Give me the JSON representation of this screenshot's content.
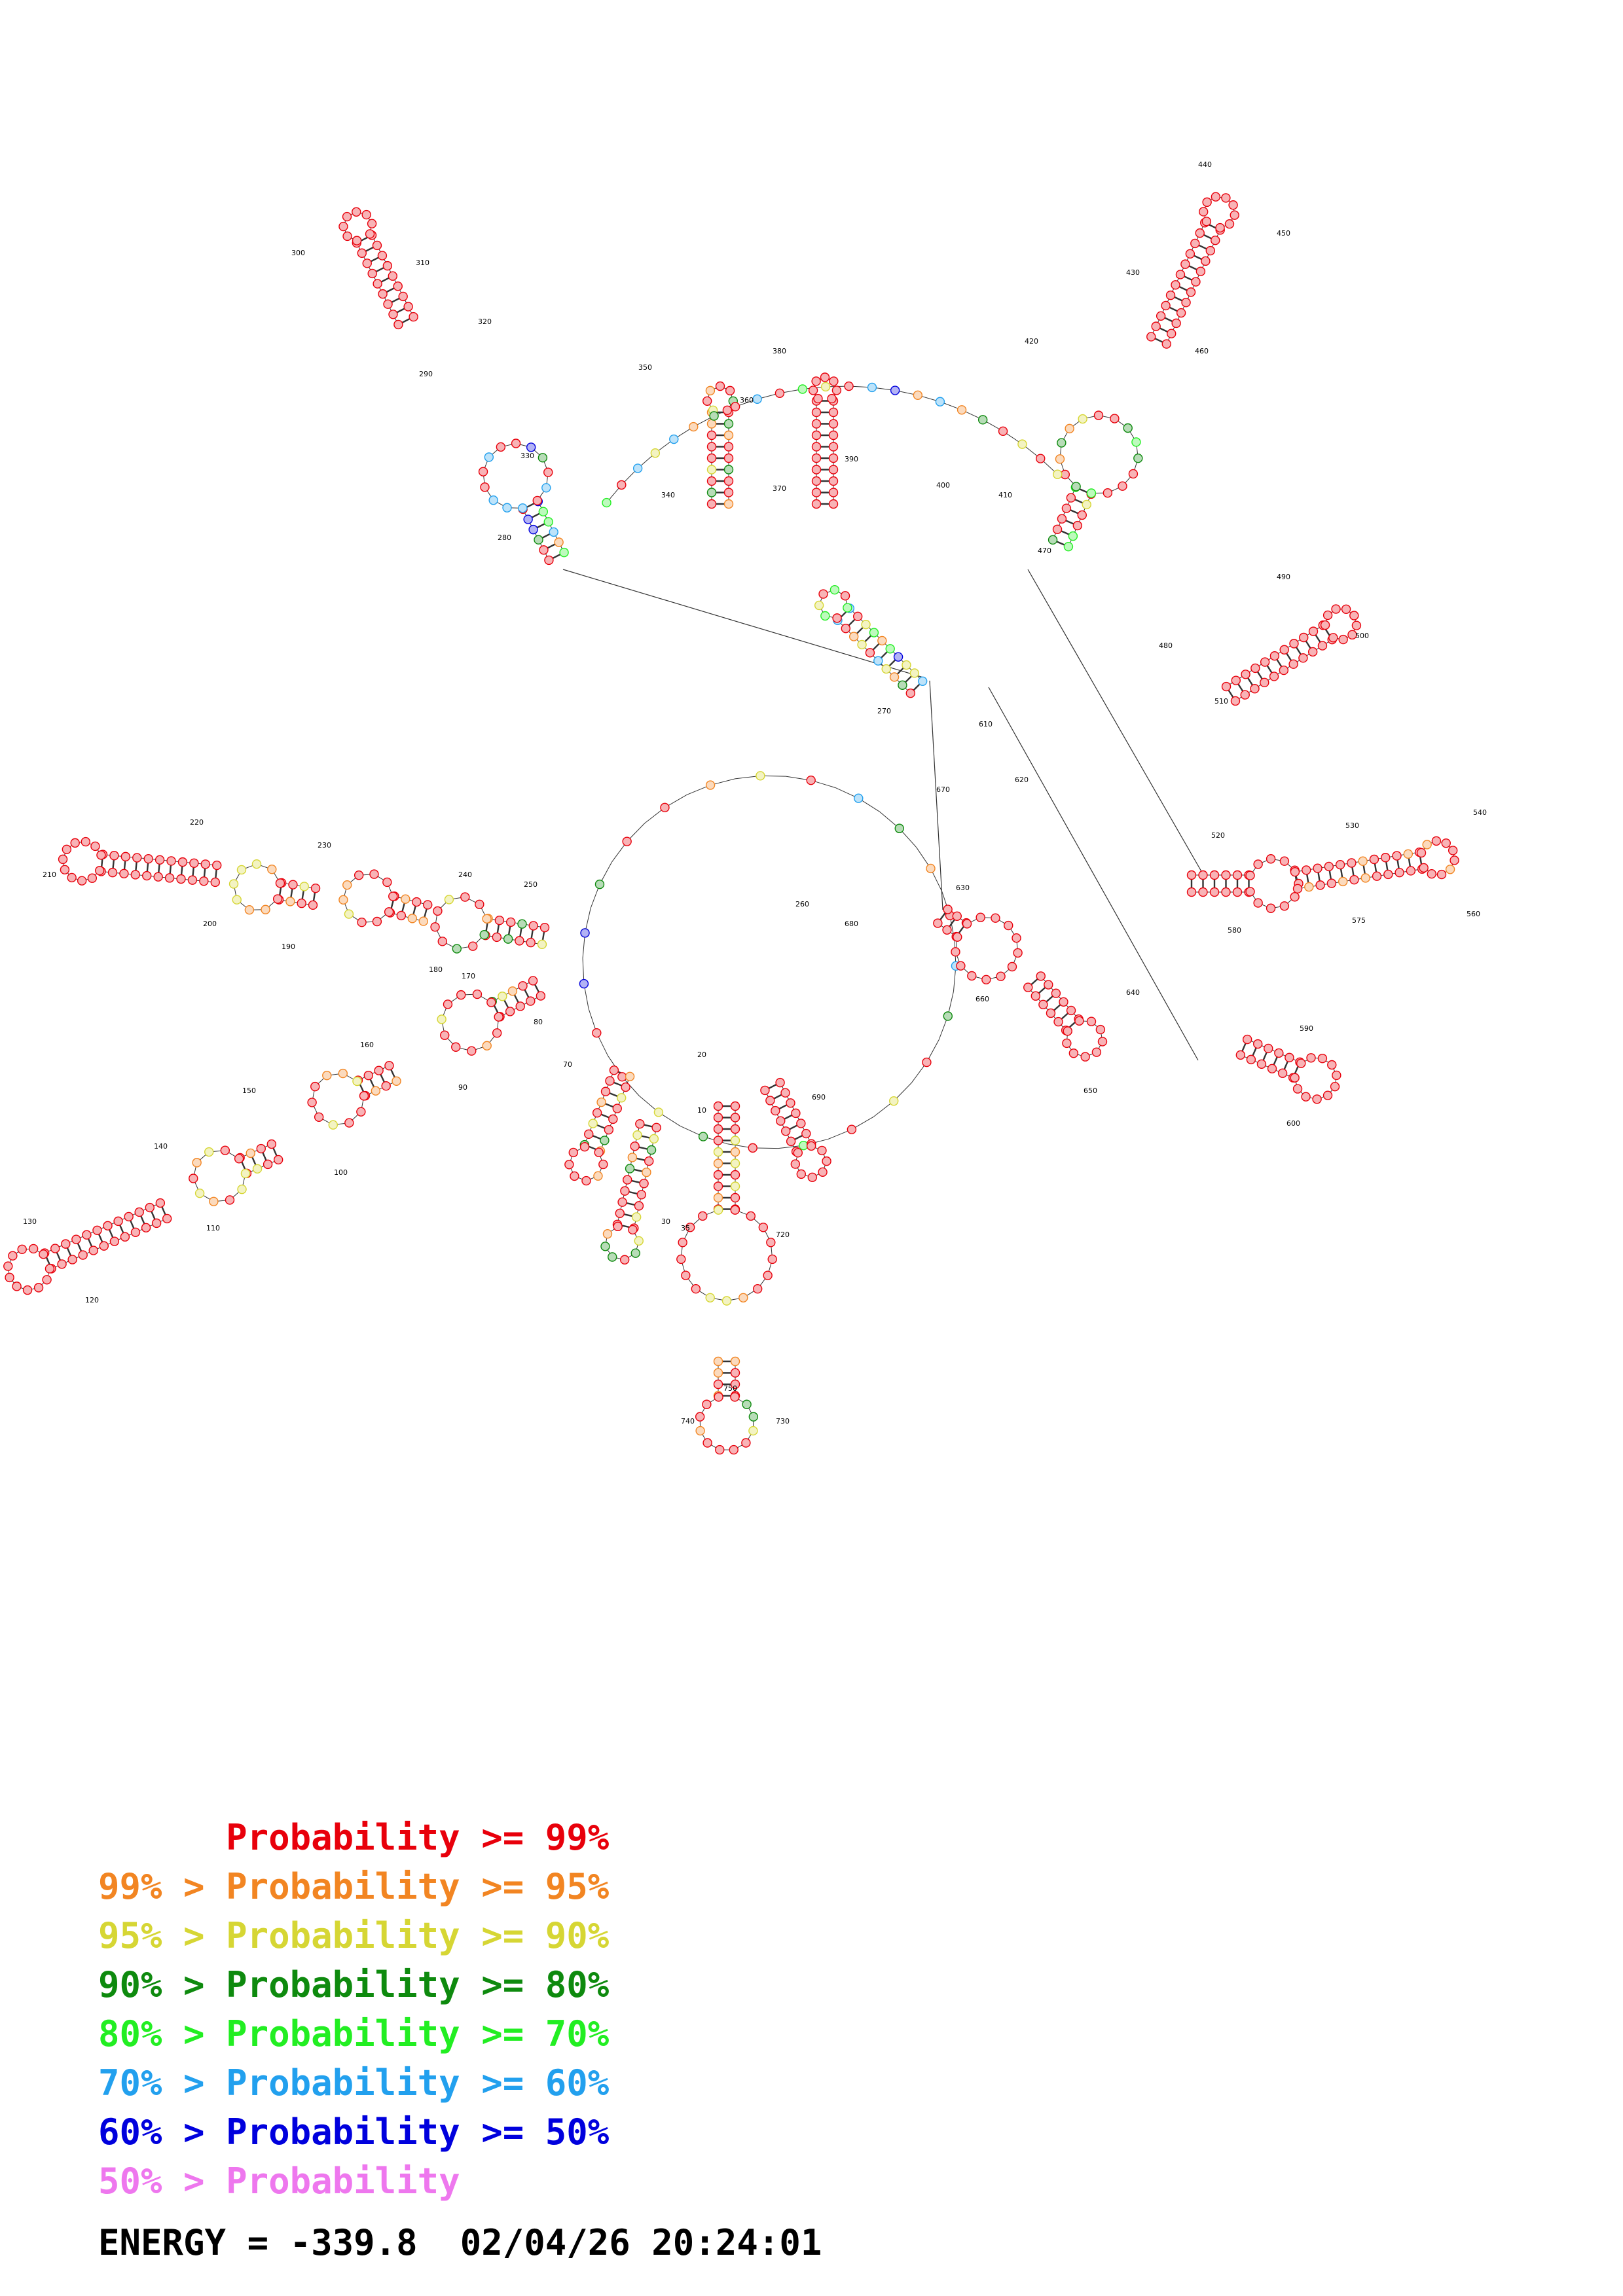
{
  "diagram": {
    "nucleotide_labels": [
      "10",
      "20",
      "30",
      "35",
      "70",
      "80",
      "90",
      "100",
      "110",
      "120",
      "130",
      "140",
      "150",
      "160",
      "170",
      "180",
      "190",
      "200",
      "210",
      "220",
      "230",
      "240",
      "250",
      "260",
      "270",
      "280",
      "290",
      "300",
      "310",
      "320",
      "330",
      "340",
      "350",
      "360",
      "370",
      "380",
      "390",
      "400",
      "410",
      "420",
      "430",
      "440",
      "450",
      "460",
      "470",
      "480",
      "490",
      "500",
      "510",
      "520",
      "530",
      "540",
      "560",
      "575",
      "580",
      "590",
      "600",
      "610",
      "620",
      "630",
      "640",
      "650",
      "660",
      "670",
      "680",
      "690",
      "720",
      "730",
      "740",
      "750"
    ],
    "colors": {
      "p99": "#e8000b",
      "p95": "#f28522",
      "p90": "#d6d634",
      "p80": "#0e8a0e",
      "p70": "#22ee22",
      "p60": "#22a0ee",
      "p50": "#0000dd",
      "p_low": "#ee77ee"
    }
  },
  "legend": [
    {
      "prefix": "",
      "text": "Probability >= 99%",
      "color": "#e8000b"
    },
    {
      "prefix": "99% > ",
      "text": "Probability >= 95%",
      "color": "#f28522"
    },
    {
      "prefix": "95% > ",
      "text": "Probability >= 90%",
      "color": "#d6d634"
    },
    {
      "prefix": "90% > ",
      "text": "Probability >= 80%",
      "color": "#0e8a0e"
    },
    {
      "prefix": "80% > ",
      "text": "Probability >= 70%",
      "color": "#22ee22"
    },
    {
      "prefix": "70% > ",
      "text": "Probability >= 60%",
      "color": "#22a0ee"
    },
    {
      "prefix": "60% > ",
      "text": "Probability >= 50%",
      "color": "#0000dd"
    },
    {
      "prefix": "50% > ",
      "text": "Probability",
      "color": "#ee77ee"
    }
  ],
  "energy": {
    "label": "ENERGY = -339.8",
    "timestamp": "02/04/26 20:24:01"
  }
}
